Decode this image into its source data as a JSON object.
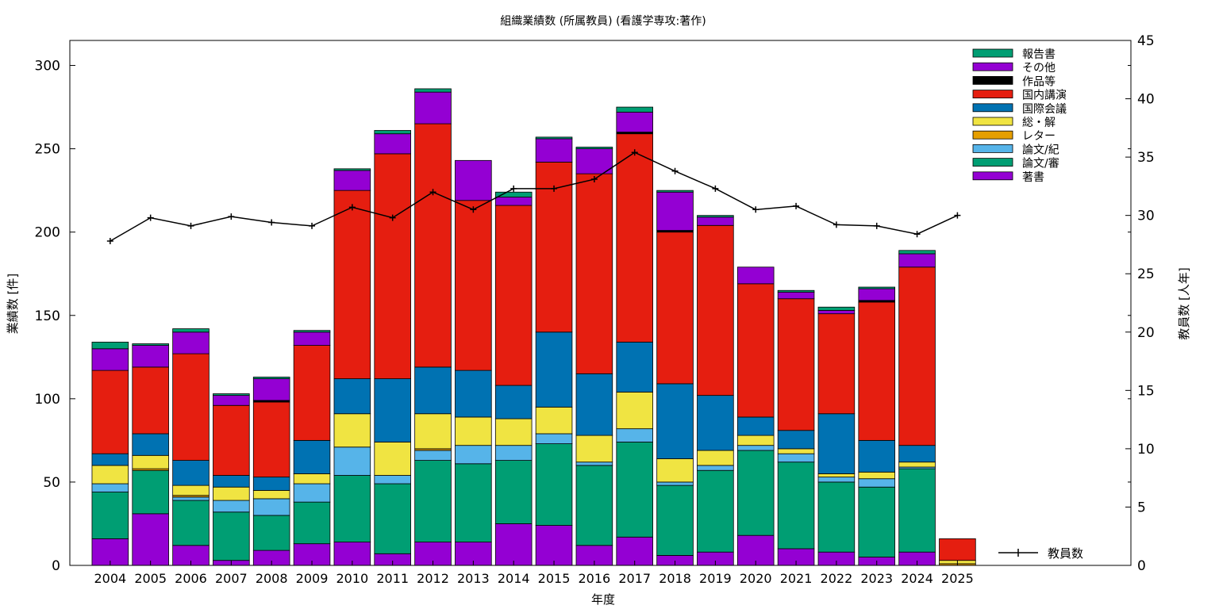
{
  "chart_data": {
    "type": "bar",
    "stacked": true,
    "title": "組織業績数 (所属教員) (看護学専攻:著作)",
    "xlabel": "年度",
    "ylabel": "業績数 [件]",
    "y2label": "教員数 [人年]",
    "ylim": [
      0,
      315
    ],
    "y2lim": [
      0,
      45
    ],
    "yticks": [
      0,
      50,
      100,
      150,
      200,
      250,
      300
    ],
    "y2ticks": [
      0,
      5,
      10,
      15,
      20,
      25,
      30,
      35,
      40,
      45
    ],
    "grid": false,
    "legend_position": "top-right",
    "categories": [
      "2004",
      "2005",
      "2006",
      "2007",
      "2008",
      "2009",
      "2010",
      "2011",
      "2012",
      "2013",
      "2014",
      "2015",
      "2016",
      "2017",
      "2018",
      "2019",
      "2020",
      "2021",
      "2022",
      "2023",
      "2024",
      "2025"
    ],
    "series": [
      {
        "name": "著書",
        "color": "#9400d3",
        "values": [
          16,
          31,
          12,
          3,
          9,
          13,
          14,
          7,
          14,
          14,
          25,
          24,
          12,
          17,
          6,
          8,
          18,
          10,
          8,
          5,
          8,
          0
        ]
      },
      {
        "name": "論文/審",
        "color": "#009e73",
        "values": [
          28,
          26,
          27,
          29,
          21,
          25,
          40,
          42,
          49,
          47,
          38,
          49,
          48,
          57,
          42,
          49,
          51,
          52,
          42,
          42,
          50,
          0
        ]
      },
      {
        "name": "論文/紀",
        "color": "#56b4e9",
        "values": [
          5,
          0,
          2,
          7,
          10,
          11,
          17,
          5,
          6,
          11,
          9,
          6,
          2,
          8,
          2,
          3,
          3,
          5,
          3,
          5,
          1,
          0
        ]
      },
      {
        "name": "レター",
        "color": "#e69f00",
        "values": [
          0,
          1,
          1,
          0,
          0,
          0,
          0,
          0,
          1,
          0,
          0,
          0,
          0,
          0,
          0,
          0,
          0,
          0,
          0,
          0,
          0,
          1
        ]
      },
      {
        "name": "総・解",
        "color": "#f0e442",
        "values": [
          11,
          8,
          6,
          8,
          5,
          6,
          20,
          20,
          21,
          17,
          16,
          16,
          16,
          22,
          14,
          9,
          6,
          3,
          2,
          4,
          3,
          2
        ]
      },
      {
        "name": "国際会議",
        "color": "#0072b2",
        "values": [
          7,
          13,
          15,
          7,
          8,
          20,
          21,
          38,
          28,
          28,
          20,
          45,
          37,
          30,
          45,
          33,
          11,
          11,
          36,
          19,
          10,
          0
        ]
      },
      {
        "name": "国内講演",
        "color": "#e51e10",
        "values": [
          50,
          40,
          64,
          42,
          45,
          57,
          113,
          135,
          146,
          102,
          108,
          102,
          120,
          125,
          91,
          102,
          80,
          79,
          60,
          83,
          107,
          13
        ]
      },
      {
        "name": "作品等",
        "color": "#000000",
        "values": [
          0,
          0,
          0,
          0,
          1,
          0,
          0,
          0,
          0,
          0,
          0,
          0,
          0,
          1,
          1,
          0,
          0,
          0,
          0,
          1,
          0,
          0
        ]
      },
      {
        "name": "その他",
        "color": "#9400d3",
        "values": [
          13,
          13,
          13,
          6,
          13,
          8,
          12,
          12,
          19,
          24,
          5,
          14,
          15,
          12,
          23,
          5,
          10,
          4,
          2,
          7,
          8,
          0
        ]
      },
      {
        "name": "報告書",
        "color": "#009e73",
        "values": [
          4,
          1,
          2,
          1,
          1,
          1,
          1,
          2,
          2,
          0,
          3,
          1,
          1,
          3,
          1,
          1,
          0,
          1,
          2,
          1,
          2,
          0
        ]
      }
    ],
    "line_series": {
      "name": "教員数",
      "color": "#000000",
      "values": [
        27.8,
        29.8,
        29.1,
        29.9,
        29.4,
        29.1,
        30.7,
        29.8,
        32.0,
        30.5,
        32.3,
        32.3,
        33.1,
        35.4,
        33.8,
        32.3,
        30.5,
        30.8,
        29.2,
        29.1,
        28.4,
        30.0
      ]
    }
  }
}
